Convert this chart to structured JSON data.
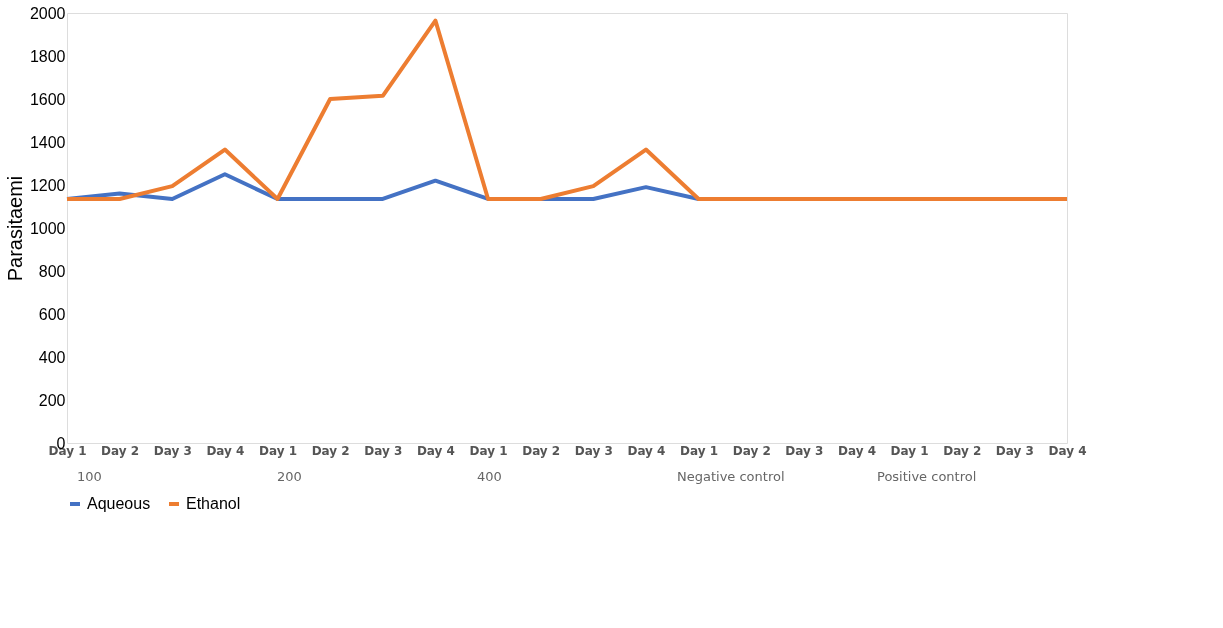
{
  "chart_data": {
    "type": "line",
    "ylabel": "Parasitaemi",
    "categories": [
      "Day 1",
      "Day 2",
      "Day 3",
      "Day 4",
      "Day 1",
      "Day 2",
      "Day 3",
      "Day 4",
      "Day 1",
      "Day 2",
      "Day 3",
      "Day 4",
      "Day 1",
      "Day 2",
      "Day 3",
      "Day 4",
      "Day 1",
      "Day 2",
      "Day 3",
      "Day 4"
    ],
    "series": [
      {
        "name": "Aqueous",
        "color": "#4472c4",
        "values": [
          1135,
          1160,
          1135,
          1250,
          1135,
          1135,
          1135,
          1220,
          1135,
          1135,
          1135,
          1190,
          1135,
          null,
          null,
          null,
          null,
          null,
          null,
          null
        ]
      },
      {
        "name": "Ethanol",
        "color": "#ed7d31",
        "values": [
          1135,
          1135,
          1195,
          1365,
          1135,
          1600,
          1615,
          1965,
          1135,
          1135,
          1195,
          1365,
          1135,
          1135,
          1135,
          1135,
          1135,
          1135,
          1135,
          1135
        ]
      }
    ],
    "ylim": [
      0,
      2000
    ],
    "yticks": [
      0,
      200,
      400,
      600,
      800,
      1000,
      1200,
      1400,
      1600,
      1800,
      2000
    ],
    "grid": false,
    "legend": "bottom",
    "marker": "none",
    "line_style": "solid",
    "annotations": [
      "100",
      "200",
      "400",
      "Negative control",
      "Positive control"
    ]
  }
}
